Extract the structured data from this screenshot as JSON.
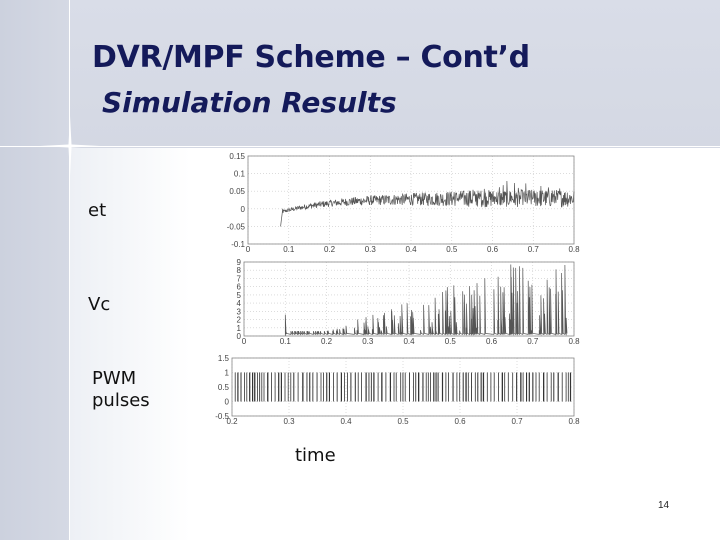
{
  "slide": {
    "title": "DVR/MPF Scheme – Cont’d",
    "subtitle": "Simulation Results",
    "page_number": "14"
  },
  "labels": {
    "panel1": "et",
    "panel2": "Vc",
    "panel3_line1": "PWM",
    "panel3_line2": "pulses",
    "x_axis": "time"
  },
  "colors": {
    "title": "#141a5a",
    "background_band": "#d6dae5",
    "trace": "#555555"
  },
  "chart_data": [
    {
      "type": "line",
      "series": [
        {
          "values_description_none": ""
        }
      ],
      "x_ticks": [
        "0",
        "0.1",
        "0.2",
        "0.3",
        "0.4",
        "0.5",
        "0.6",
        "0.7",
        "0.8"
      ],
      "y_ticks": [
        "0.15",
        "0.1",
        "0.05",
        "0",
        "-0.05",
        "-0.1"
      ],
      "xlim": [
        0,
        0.8
      ],
      "ylim": [
        -0.1,
        0.15
      ],
      "grid": true
    },
    {
      "type": "line",
      "x_ticks": [
        "0",
        "0.1",
        "0.2",
        "0.3",
        "0.4",
        "0.5",
        "0.6",
        "0.7",
        "0.8"
      ],
      "y_ticks": [
        "9",
        "8",
        "7",
        "6",
        "5",
        "4",
        "3",
        "2",
        "1",
        "0"
      ],
      "xlim": [
        0,
        0.8
      ],
      "ylim": [
        0,
        9
      ],
      "grid": true
    },
    {
      "type": "line",
      "x_ticks": [
        "0.2",
        "0.3",
        "0.4",
        "0.5",
        "0.6",
        "0.7",
        "0.8"
      ],
      "y_ticks": [
        "1.5",
        "1",
        "0.5",
        "0",
        "-0.5"
      ],
      "xlim": [
        0.2,
        0.8
      ],
      "ylim": [
        -0.5,
        1.5
      ],
      "grid": true
    }
  ]
}
